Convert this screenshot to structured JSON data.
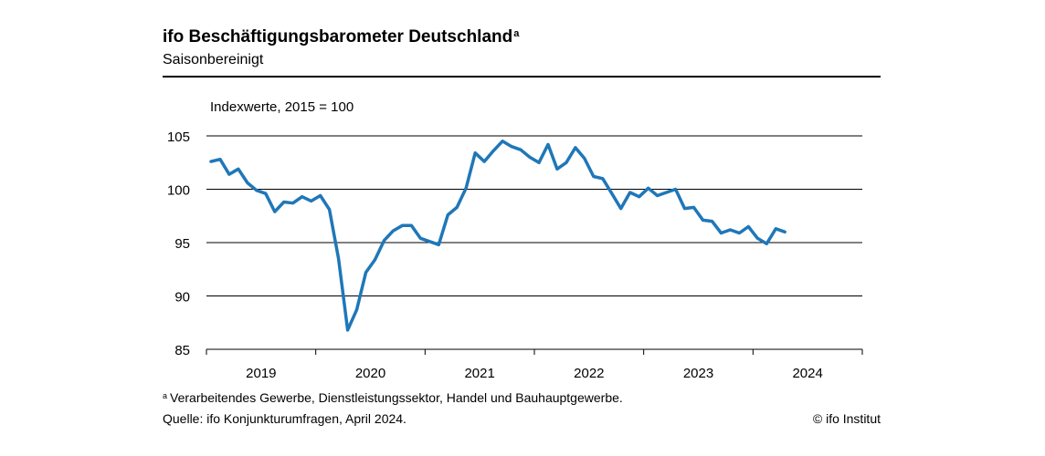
{
  "header": {
    "title": "ifo Beschäftigungsbarometer Deutschland",
    "title_marker": "a",
    "subtitle": "Saisonbereinigt"
  },
  "chart_data": {
    "type": "line",
    "unit_label": "Indexwerte, 2015 = 100",
    "ylim": [
      85,
      105
    ],
    "y_ticks": [
      85,
      90,
      95,
      100,
      105
    ],
    "x_ticks": [
      "2019",
      "2020",
      "2021",
      "2022",
      "2023",
      "2024"
    ],
    "grid": true,
    "series": [
      {
        "color": "#1f77b8",
        "x": [
          "2019-01",
          "2019-02",
          "2019-03",
          "2019-04",
          "2019-05",
          "2019-06",
          "2019-07",
          "2019-08",
          "2019-09",
          "2019-10",
          "2019-11",
          "2019-12",
          "2020-01",
          "2020-02",
          "2020-03",
          "2020-04",
          "2020-05",
          "2020-06",
          "2020-07",
          "2020-08",
          "2020-09",
          "2020-10",
          "2020-11",
          "2020-12",
          "2021-01",
          "2021-02",
          "2021-03",
          "2021-04",
          "2021-05",
          "2021-06",
          "2021-07",
          "2021-08",
          "2021-09",
          "2021-10",
          "2021-11",
          "2021-12",
          "2022-01",
          "2022-02",
          "2022-03",
          "2022-04",
          "2022-05",
          "2022-06",
          "2022-07",
          "2022-08",
          "2022-09",
          "2022-10",
          "2022-11",
          "2022-12",
          "2023-01",
          "2023-02",
          "2023-03",
          "2023-04",
          "2023-05",
          "2023-06",
          "2023-07",
          "2023-08",
          "2023-09",
          "2023-10",
          "2023-11",
          "2023-12",
          "2024-01",
          "2024-02",
          "2024-03",
          "2024-04"
        ],
        "values": [
          102.6,
          102.8,
          101.4,
          101.9,
          100.6,
          99.9,
          99.6,
          97.9,
          98.8,
          98.7,
          99.3,
          98.9,
          99.4,
          98.1,
          93.5,
          86.8,
          88.7,
          92.2,
          93.4,
          95.2,
          96.1,
          96.6,
          96.6,
          95.4,
          95.1,
          94.8,
          97.6,
          98.3,
          100.1,
          103.4,
          102.6,
          103.6,
          104.5,
          104.0,
          103.7,
          103.0,
          102.5,
          104.2,
          101.9,
          102.5,
          103.9,
          102.9,
          101.2,
          101.0,
          99.6,
          98.2,
          99.7,
          99.3,
          100.1,
          99.4,
          99.7,
          100.0,
          98.2,
          98.3,
          97.1,
          97.0,
          95.9,
          96.2,
          95.9,
          96.5,
          95.4,
          94.9,
          96.3,
          96.0
        ]
      }
    ]
  },
  "footer": {
    "footnote_marker": "a",
    "footnote": "Verarbeitendes Gewerbe, Dienstleistungssektor, Handel und Bauhauptgewerbe.",
    "source": "Quelle: ifo Konjunkturumfragen, April 2024.",
    "copyright": "© ifo Institut"
  }
}
